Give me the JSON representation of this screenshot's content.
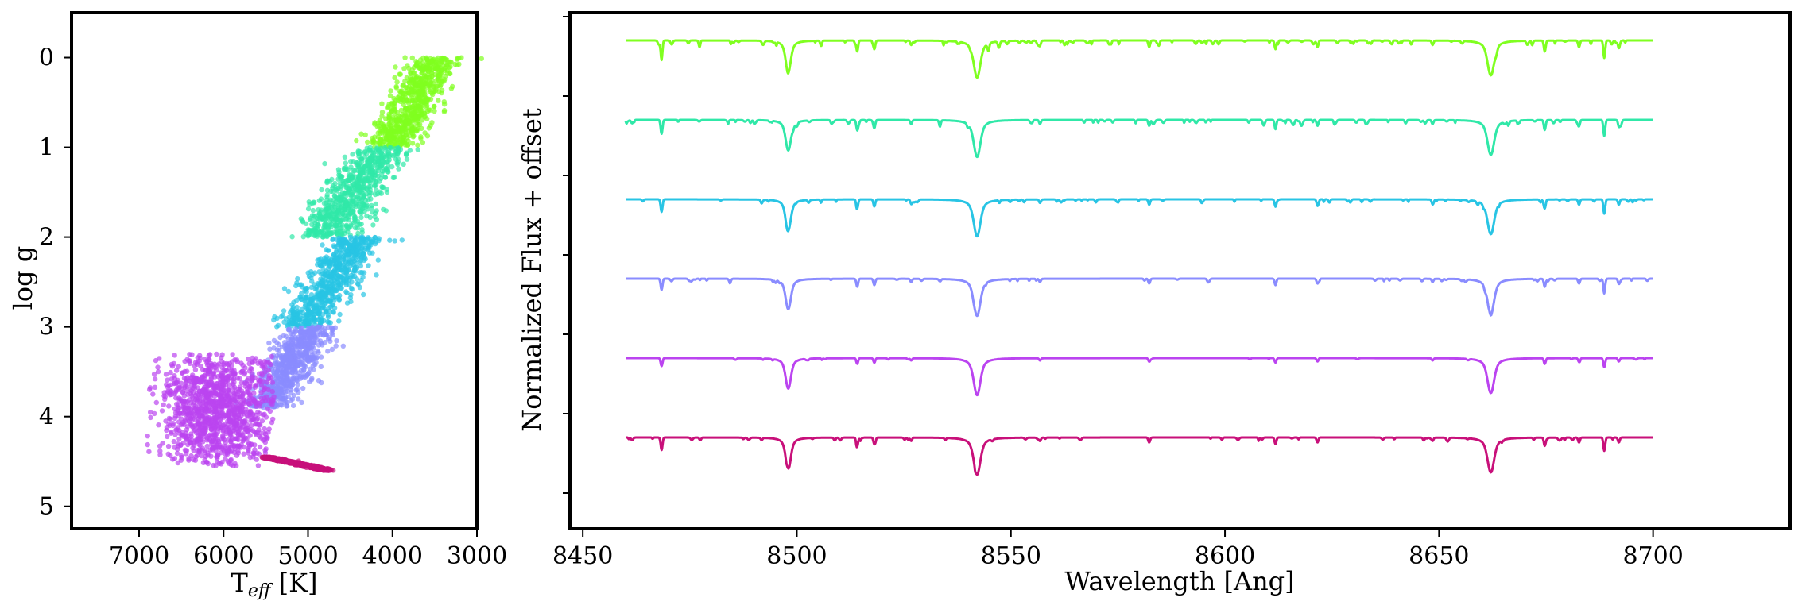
{
  "chart_data": [
    {
      "type": "scatter",
      "xlabel": "T",
      "xlabel_sub": "eff",
      "xlabel_unit": " [K]",
      "ylabel": "log g",
      "xlim": [
        7800,
        3000
      ],
      "ylim": [
        5.25,
        -0.5
      ],
      "xticks": [
        "7000",
        "6000",
        "5000",
        "4000",
        "3000"
      ],
      "xtick_values": [
        7000,
        6000,
        5000,
        4000,
        3000
      ],
      "yticks": [
        "0",
        "1",
        "2",
        "3",
        "4",
        "5"
      ],
      "ytick_values": [
        0,
        1,
        2,
        3,
        4,
        5
      ],
      "groups": [
        {
          "color": "#80ff20",
          "logg_range": [
            0.0,
            1.0
          ],
          "teff_at_top": 3450,
          "teff_at_bottom": 4050,
          "spread": 420
        },
        {
          "color": "#30e8a8",
          "logg_range": [
            1.0,
            2.0
          ],
          "teff_at_top": 4100,
          "teff_at_bottom": 4800,
          "spread": 520
        },
        {
          "color": "#28c4e4",
          "logg_range": [
            2.0,
            3.0
          ],
          "teff_at_top": 4400,
          "teff_at_bottom": 5050,
          "spread": 460
        },
        {
          "color": "#8a8cff",
          "logg_range": [
            3.0,
            3.9
          ],
          "teff_at_top": 4950,
          "teff_at_bottom": 5500,
          "spread": 420
        },
        {
          "color": "#bb44f0",
          "logg_range": [
            3.3,
            4.55
          ],
          "teff_center": 6050,
          "spread": 800
        },
        {
          "color": "#c8107a",
          "logg_range": [
            4.45,
            4.6
          ],
          "teff_at_top": 5500,
          "teff_at_bottom": 4750,
          "spread": 100
        }
      ]
    },
    {
      "type": "line",
      "xlabel": "Wavelength [Ang]",
      "ylabel": "Normalized Flux + offset",
      "xlim": [
        8447,
        8732
      ],
      "x_range": [
        8460,
        8700
      ],
      "xticks": [
        "8450",
        "8500",
        "8550",
        "8600",
        "8650",
        "8700"
      ],
      "xtick_values": [
        8450,
        8500,
        8550,
        8600,
        8650,
        8700
      ],
      "offset_step": 1.0,
      "lines": [
        {
          "center": 8498.0,
          "depth": 0.7,
          "width": 0.8,
          "type": "strong"
        },
        {
          "center": 8542.1,
          "depth": 0.85,
          "width": 1.0,
          "type": "strong"
        },
        {
          "center": 8662.1,
          "depth": 0.8,
          "width": 1.0,
          "type": "strong"
        },
        {
          "center": 8468.4,
          "depth": 0.35,
          "width": 0.3,
          "type": "weak"
        },
        {
          "center": 8514.1,
          "depth": 0.25,
          "width": 0.3,
          "type": "weak"
        },
        {
          "center": 8518.1,
          "depth": 0.2,
          "width": 0.3,
          "type": "weak"
        },
        {
          "center": 8526.7,
          "depth": 0.1,
          "width": 0.3,
          "type": "weak"
        },
        {
          "center": 8556.8,
          "depth": 0.1,
          "width": 0.3,
          "type": "weak"
        },
        {
          "center": 8582.3,
          "depth": 0.15,
          "width": 0.3,
          "type": "weak"
        },
        {
          "center": 8611.8,
          "depth": 0.2,
          "width": 0.3,
          "type": "weak"
        },
        {
          "center": 8621.6,
          "depth": 0.15,
          "width": 0.3,
          "type": "weak"
        },
        {
          "center": 8648.5,
          "depth": 0.1,
          "width": 0.3,
          "type": "weak"
        },
        {
          "center": 8674.7,
          "depth": 0.25,
          "width": 0.3,
          "type": "weak"
        },
        {
          "center": 8682.7,
          "depth": 0.15,
          "width": 0.3,
          "type": "weak"
        },
        {
          "center": 8688.6,
          "depth": 0.4,
          "width": 0.3,
          "type": "weak"
        },
        {
          "center": 8692.0,
          "depth": 0.15,
          "width": 0.3,
          "type": "weak"
        }
      ],
      "series": [
        {
          "color": "#80ff20",
          "offset": 5,
          "cool": 1.0
        },
        {
          "color": "#30e8a8",
          "offset": 4,
          "cool": 0.85
        },
        {
          "color": "#28c4e4",
          "offset": 3,
          "cool": 0.7
        },
        {
          "color": "#8a8cff",
          "offset": 2,
          "cool": 0.55
        },
        {
          "color": "#bb44f0",
          "offset": 1,
          "cool": 0.2
        },
        {
          "color": "#c8107a",
          "offset": 0,
          "cool": 0.6
        }
      ]
    }
  ]
}
